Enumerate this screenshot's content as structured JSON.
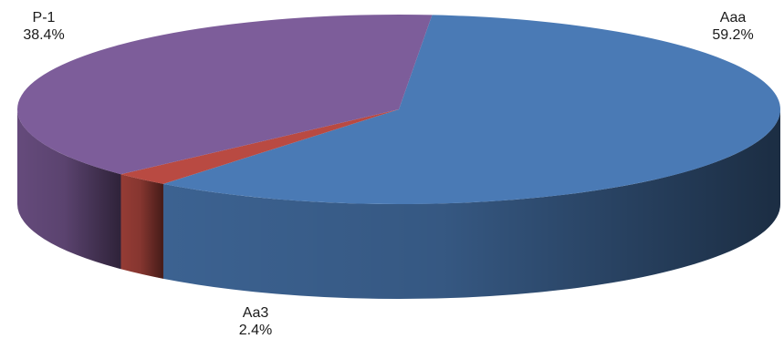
{
  "chart_data": {
    "type": "pie",
    "style": "3d",
    "slices": [
      {
        "label": "Aaa",
        "value": 59.2,
        "value_label": "59.2%",
        "color": "#4a7ab5"
      },
      {
        "label": "Aa3",
        "value": 2.4,
        "value_label": "2.4%",
        "color": "#b94a42"
      },
      {
        "label": "P-1",
        "value": 38.4,
        "value_label": "38.4%",
        "color": "#7d5d9a"
      }
    ]
  }
}
